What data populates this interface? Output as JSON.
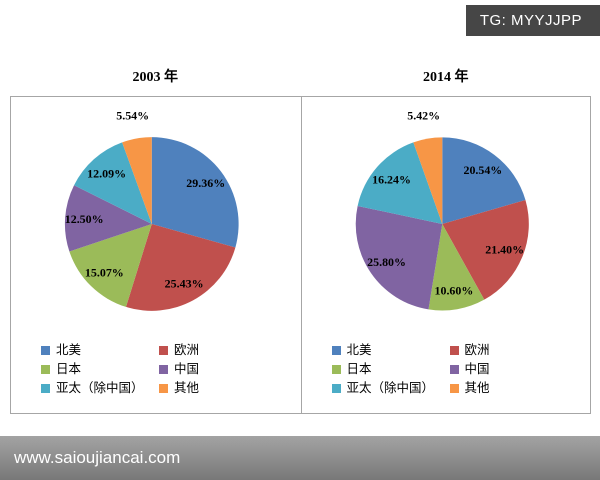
{
  "watermarks": {
    "top": "TG: MYYJJPP",
    "bottom": "www.saioujiancai.com"
  },
  "chart_data": [
    {
      "type": "pie",
      "title": "2003 年",
      "categories": [
        "北美",
        "欧洲",
        "日本",
        "中国",
        "亚太（除中国）",
        "其他"
      ],
      "values": [
        29.36,
        25.43,
        15.07,
        12.5,
        12.09,
        5.54
      ],
      "labels": [
        "29.36%",
        "25.43%",
        "15.07%",
        "12.50%",
        "12.09%",
        "5.54%"
      ],
      "colors": [
        "#4F81BD",
        "#C0504D",
        "#9BBB59",
        "#8064A2",
        "#4BACC6",
        "#F79646"
      ],
      "units": "%",
      "start_angle_deg": -90,
      "direction": "clockwise",
      "legend_position": "bottom"
    },
    {
      "type": "pie",
      "title": "2014 年",
      "categories": [
        "北美",
        "欧洲",
        "日本",
        "中国",
        "亚太（除中国）",
        "其他"
      ],
      "values": [
        20.54,
        21.4,
        10.6,
        25.8,
        16.24,
        5.42
      ],
      "labels": [
        "20.54%",
        "21.40%",
        "10.60%",
        "25.80%",
        "16.24%",
        "5.42%"
      ],
      "colors": [
        "#4F81BD",
        "#C0504D",
        "#9BBB59",
        "#8064A2",
        "#4BACC6",
        "#F79646"
      ],
      "units": "%",
      "start_angle_deg": -90,
      "direction": "clockwise",
      "legend_position": "bottom"
    }
  ]
}
